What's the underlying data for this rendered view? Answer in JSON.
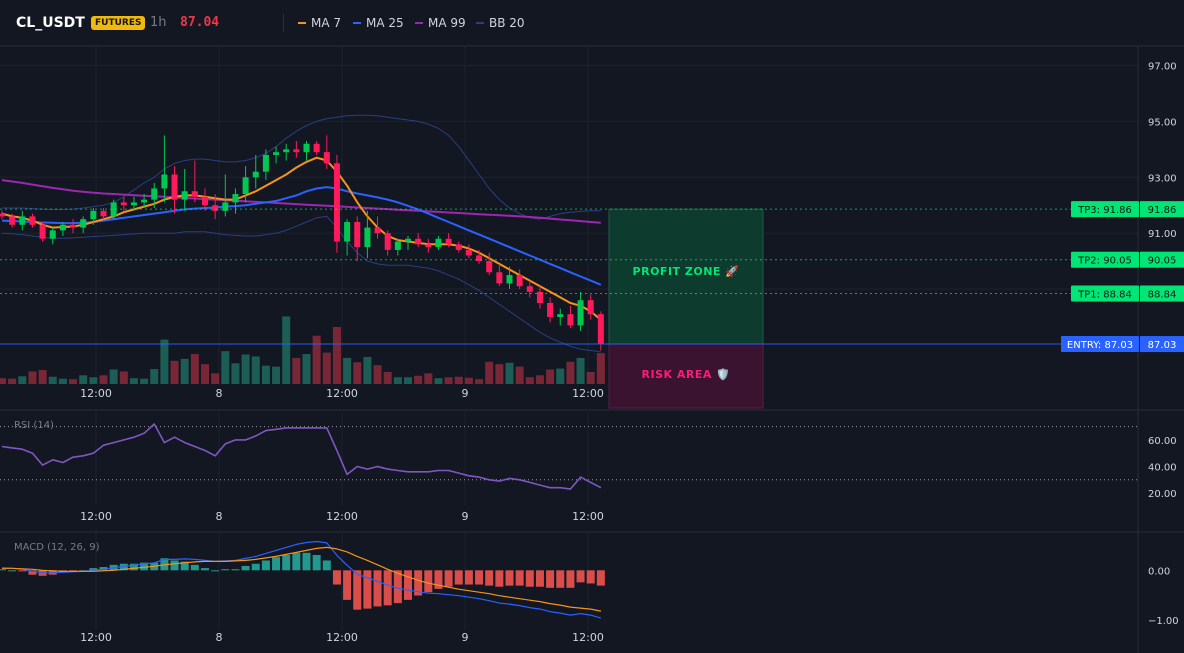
{
  "header": {
    "symbol": "CL_USDT",
    "badge": "FUTURES",
    "timeframe": "1h",
    "price": "87.04"
  },
  "legend": [
    {
      "label": "MA 7",
      "color": "#f7931a"
    },
    {
      "label": "MA 25",
      "color": "#2962ff"
    },
    {
      "label": "MA 99",
      "color": "#9c27b0"
    },
    {
      "label": "BB 20",
      "color": "#2a3f82"
    }
  ],
  "colors": {
    "up": "#26a69a",
    "up_candle": "#00c853",
    "down": "#f23645",
    "down_candle": "#ff1a5c",
    "grid": "#1e222d",
    "axis_text": "#d1d4dc",
    "rsi": "#7e57c2",
    "macd": "#2962ff",
    "signal": "#f7931a",
    "entry": "#2962ff",
    "tp": "#00e676"
  },
  "chart_data": [
    {
      "type": "candlestick",
      "name": "price",
      "y_axis_ticks": [
        "97.00",
        "95.00",
        "93.00",
        "91.00",
        "89.00"
      ],
      "ylim": [
        85.6,
        97.7
      ],
      "x_tick_labels": [
        "12:00",
        "8",
        "12:00",
        "9",
        "12:00"
      ],
      "candles": [
        [
          91.7,
          91.8,
          91.5,
          91.6
        ],
        [
          91.6,
          91.7,
          91.2,
          91.3
        ],
        [
          91.3,
          91.8,
          91.1,
          91.6
        ],
        [
          91.6,
          91.7,
          91.2,
          91.3
        ],
        [
          91.3,
          91.4,
          90.7,
          90.8
        ],
        [
          90.8,
          91.2,
          90.6,
          91.1
        ],
        [
          91.1,
          91.4,
          90.9,
          91.3
        ],
        [
          91.3,
          91.5,
          91.0,
          91.2
        ],
        [
          91.2,
          91.6,
          91.0,
          91.5
        ],
        [
          91.5,
          91.9,
          91.3,
          91.8
        ],
        [
          91.8,
          91.9,
          91.5,
          91.6
        ],
        [
          91.6,
          92.2,
          91.5,
          92.1
        ],
        [
          92.1,
          92.3,
          91.8,
          92.0
        ],
        [
          92.0,
          92.3,
          91.8,
          92.1
        ],
        [
          92.1,
          92.4,
          91.9,
          92.2
        ],
        [
          92.2,
          92.8,
          91.9,
          92.6
        ],
        [
          92.6,
          94.5,
          92.1,
          93.1
        ],
        [
          93.1,
          93.4,
          91.7,
          92.2
        ],
        [
          92.2,
          93.3,
          91.8,
          92.5
        ],
        [
          92.5,
          93.6,
          92.1,
          92.3
        ],
        [
          92.3,
          92.6,
          91.8,
          92.0
        ],
        [
          92.0,
          92.4,
          91.5,
          91.8
        ],
        [
          91.8,
          93.1,
          91.6,
          92.1
        ],
        [
          92.1,
          92.6,
          91.7,
          92.4
        ],
        [
          92.4,
          93.4,
          92.1,
          93.0
        ],
        [
          93.0,
          93.8,
          92.6,
          93.2
        ],
        [
          93.2,
          94.0,
          92.9,
          93.8
        ],
        [
          93.8,
          94.1,
          93.5,
          93.9
        ],
        [
          93.9,
          94.2,
          93.6,
          94.0
        ],
        [
          94.0,
          94.3,
          93.7,
          93.9
        ],
        [
          93.9,
          94.3,
          93.6,
          94.2
        ],
        [
          94.2,
          94.3,
          93.8,
          93.9
        ],
        [
          93.9,
          94.5,
          93.3,
          93.5
        ],
        [
          93.5,
          93.8,
          90.3,
          90.7
        ],
        [
          90.7,
          91.5,
          90.2,
          91.4
        ],
        [
          91.4,
          91.6,
          90.0,
          90.5
        ],
        [
          90.5,
          91.8,
          90.1,
          91.2
        ],
        [
          91.2,
          91.6,
          90.8,
          91.0
        ],
        [
          91.0,
          91.1,
          90.2,
          90.4
        ],
        [
          90.4,
          90.8,
          90.2,
          90.7
        ],
        [
          90.7,
          90.9,
          90.4,
          90.8
        ],
        [
          90.8,
          91.0,
          90.5,
          90.6
        ],
        [
          90.6,
          90.8,
          90.3,
          90.5
        ],
        [
          90.5,
          90.9,
          90.4,
          90.8
        ],
        [
          90.8,
          91.0,
          90.5,
          90.6
        ],
        [
          90.6,
          90.7,
          90.3,
          90.4
        ],
        [
          90.4,
          90.6,
          90.1,
          90.2
        ],
        [
          90.2,
          90.4,
          89.9,
          90.0
        ],
        [
          90.0,
          90.3,
          89.5,
          89.6
        ],
        [
          89.6,
          89.9,
          89.1,
          89.2
        ],
        [
          89.2,
          89.8,
          89.0,
          89.5
        ],
        [
          89.5,
          89.7,
          89.0,
          89.1
        ],
        [
          89.1,
          89.3,
          88.7,
          88.9
        ],
        [
          88.9,
          89.1,
          88.3,
          88.5
        ],
        [
          88.5,
          88.7,
          87.8,
          88.0
        ],
        [
          88.0,
          88.3,
          87.7,
          88.1
        ],
        [
          88.1,
          88.4,
          87.6,
          87.7
        ],
        [
          87.7,
          88.9,
          87.5,
          88.6
        ],
        [
          88.6,
          88.8,
          87.9,
          88.1
        ],
        [
          88.1,
          88.2,
          86.8,
          87.04
        ]
      ],
      "volume": [
        120,
        110,
        160,
        260,
        290,
        150,
        110,
        100,
        180,
        140,
        180,
        300,
        260,
        120,
        110,
        310,
        920,
        480,
        520,
        620,
        410,
        220,
        680,
        430,
        610,
        570,
        380,
        360,
        1400,
        540,
        620,
        1000,
        650,
        1180,
        540,
        450,
        560,
        390,
        250,
        140,
        140,
        170,
        220,
        120,
        140,
        150,
        130,
        100,
        460,
        410,
        440,
        360,
        140,
        180,
        300,
        320,
        460,
        540,
        250,
        640
      ],
      "vol_max": 1450,
      "ma7": [
        91.7,
        91.6,
        91.55,
        91.45,
        91.3,
        91.2,
        91.22,
        91.24,
        91.3,
        91.4,
        91.5,
        91.6,
        91.75,
        91.85,
        91.95,
        92.05,
        92.2,
        92.3,
        92.35,
        92.35,
        92.3,
        92.25,
        92.2,
        92.2,
        92.35,
        92.5,
        92.7,
        92.9,
        93.1,
        93.35,
        93.55,
        93.7,
        93.6,
        93.2,
        92.7,
        92.1,
        91.6,
        91.2,
        90.9,
        90.75,
        90.7,
        90.65,
        90.6,
        90.6,
        90.6,
        90.55,
        90.45,
        90.3,
        90.1,
        89.9,
        89.7,
        89.5,
        89.3,
        89.1,
        88.9,
        88.7,
        88.5,
        88.4,
        88.2,
        87.9
      ],
      "ma25": [
        91.45,
        91.43,
        91.42,
        91.4,
        91.38,
        91.37,
        91.36,
        91.36,
        91.37,
        91.4,
        91.45,
        91.5,
        91.55,
        91.6,
        91.65,
        91.7,
        91.75,
        91.8,
        91.85,
        91.88,
        91.9,
        91.92,
        91.95,
        91.97,
        92.0,
        92.05,
        92.1,
        92.15,
        92.25,
        92.35,
        92.5,
        92.6,
        92.65,
        92.6,
        92.5,
        92.42,
        92.35,
        92.28,
        92.2,
        92.1,
        91.98,
        91.85,
        91.7,
        91.55,
        91.4,
        91.25,
        91.1,
        90.95,
        90.8,
        90.65,
        90.5,
        90.35,
        90.2,
        90.05,
        89.9,
        89.75,
        89.6,
        89.45,
        89.3,
        89.15
      ],
      "ma99": [
        92.9,
        92.85,
        92.8,
        92.74,
        92.68,
        92.62,
        92.57,
        92.52,
        92.48,
        92.45,
        92.42,
        92.4,
        92.38,
        92.36,
        92.34,
        92.32,
        92.3,
        92.28,
        92.26,
        92.24,
        92.22,
        92.2,
        92.18,
        92.16,
        92.14,
        92.12,
        92.1,
        92.08,
        92.06,
        92.04,
        92.02,
        92.0,
        91.98,
        91.96,
        91.94,
        91.92,
        91.9,
        91.88,
        91.86,
        91.84,
        91.82,
        91.8,
        91.78,
        91.76,
        91.74,
        91.72,
        91.7,
        91.68,
        91.66,
        91.64,
        91.62,
        91.6,
        91.58,
        91.55,
        91.52,
        91.49,
        91.46,
        91.43,
        91.4,
        91.37
      ],
      "bb_upper": [
        91.9,
        91.9,
        91.9,
        91.88,
        91.86,
        91.85,
        91.85,
        91.86,
        91.9,
        91.95,
        92.0,
        92.1,
        92.3,
        92.55,
        92.8,
        93.0,
        93.3,
        93.5,
        93.6,
        93.65,
        93.65,
        93.6,
        93.55,
        93.55,
        93.6,
        93.7,
        93.85,
        94.1,
        94.4,
        94.65,
        94.85,
        95.0,
        95.1,
        95.15,
        95.2,
        95.22,
        95.22,
        95.2,
        95.15,
        95.1,
        95.05,
        95.0,
        94.9,
        94.75,
        94.5,
        94.1,
        93.6,
        93.1,
        92.6,
        92.2,
        91.9,
        91.7,
        91.55,
        91.5,
        91.6,
        91.7,
        91.75,
        91.78,
        91.8,
        91.8
      ],
      "bb_lower": [
        91.0,
        90.98,
        90.95,
        90.9,
        90.85,
        90.82,
        90.82,
        90.83,
        90.85,
        90.88,
        90.9,
        90.92,
        90.95,
        90.97,
        91.0,
        91.0,
        91.0,
        91.0,
        91.05,
        91.05,
        91.05,
        91.0,
        90.95,
        90.92,
        90.9,
        90.9,
        90.95,
        91.0,
        91.1,
        91.25,
        91.4,
        91.55,
        91.6,
        91.2,
        90.7,
        90.3,
        90.0,
        89.9,
        89.85,
        89.85,
        89.85,
        89.8,
        89.75,
        89.65,
        89.5,
        89.35,
        89.15,
        88.95,
        88.7,
        88.45,
        88.2,
        87.95,
        87.7,
        87.45,
        87.25,
        87.1,
        86.95,
        86.85,
        86.8,
        86.75
      ],
      "levels": [
        {
          "label": "TP3: 91.86",
          "value": 91.86,
          "axis_label": "91.86"
        },
        {
          "label": "TP2: 90.05",
          "value": 90.05,
          "axis_label": "90.05"
        },
        {
          "label": "TP1: 88.84",
          "value": 88.84,
          "axis_label": "88.84"
        },
        {
          "label": "ENTRY: 87.03",
          "value": 87.03,
          "axis_label": "87.03"
        }
      ],
      "zones": {
        "profit_label": "PROFIT ZONE 🚀",
        "risk_label": "RISK AREA 🛡️",
        "profit_range": [
          87.03,
          91.86
        ],
        "risk_range": [
          85.6,
          87.03
        ]
      }
    },
    {
      "type": "line",
      "name": "rsi",
      "title": "RSI (14)",
      "y_axis_ticks": [
        "60.00",
        "40.00",
        "20.00"
      ],
      "ylim": [
        11,
        81
      ],
      "levels": [
        70,
        30
      ],
      "values": [
        55,
        54,
        53,
        50,
        41,
        45,
        43,
        47,
        48,
        50,
        56,
        58,
        60,
        62,
        65,
        72,
        58,
        62,
        58,
        55,
        52,
        48,
        57,
        60,
        60,
        63,
        67,
        68,
        69,
        69,
        69,
        69,
        69,
        52,
        34,
        40,
        38,
        40,
        38,
        37,
        36,
        36,
        36,
        37,
        37,
        35,
        33,
        32,
        30,
        29,
        31,
        30,
        28,
        26,
        24,
        24,
        23,
        32,
        28,
        24
      ]
    },
    {
      "type": "bar_line",
      "name": "macd",
      "title": "MACD (12, 26, 9)",
      "y_axis_ticks": [
        "0.00",
        "−1.00"
      ],
      "ylim": [
        -1.2,
        0.75
      ],
      "macd": [
        0.05,
        0.04,
        0.02,
        -0.02,
        -0.05,
        -0.05,
        -0.04,
        -0.03,
        -0.02,
        0.0,
        0.02,
        0.05,
        0.08,
        0.1,
        0.13,
        0.15,
        0.22,
        0.22,
        0.23,
        0.22,
        0.2,
        0.18,
        0.19,
        0.2,
        0.24,
        0.28,
        0.34,
        0.4,
        0.46,
        0.52,
        0.56,
        0.58,
        0.55,
        0.3,
        0.1,
        -0.08,
        -0.15,
        -0.22,
        -0.3,
        -0.36,
        -0.4,
        -0.43,
        -0.46,
        -0.47,
        -0.49,
        -0.51,
        -0.54,
        -0.57,
        -0.61,
        -0.66,
        -0.68,
        -0.71,
        -0.75,
        -0.78,
        -0.83,
        -0.86,
        -0.9,
        -0.87,
        -0.9,
        -0.96
      ],
      "signal": [
        0.04,
        0.04,
        0.03,
        0.02,
        0.0,
        -0.01,
        -0.02,
        -0.02,
        -0.02,
        -0.02,
        -0.01,
        0.0,
        0.02,
        0.04,
        0.06,
        0.08,
        0.11,
        0.13,
        0.15,
        0.17,
        0.18,
        0.18,
        0.18,
        0.19,
        0.2,
        0.22,
        0.25,
        0.28,
        0.32,
        0.36,
        0.4,
        0.44,
        0.46,
        0.43,
        0.37,
        0.28,
        0.2,
        0.11,
        0.02,
        -0.06,
        -0.13,
        -0.2,
        -0.26,
        -0.3,
        -0.34,
        -0.38,
        -0.41,
        -0.44,
        -0.47,
        -0.51,
        -0.54,
        -0.57,
        -0.6,
        -0.63,
        -0.67,
        -0.7,
        -0.74,
        -0.76,
        -0.78,
        -0.82
      ]
    }
  ]
}
